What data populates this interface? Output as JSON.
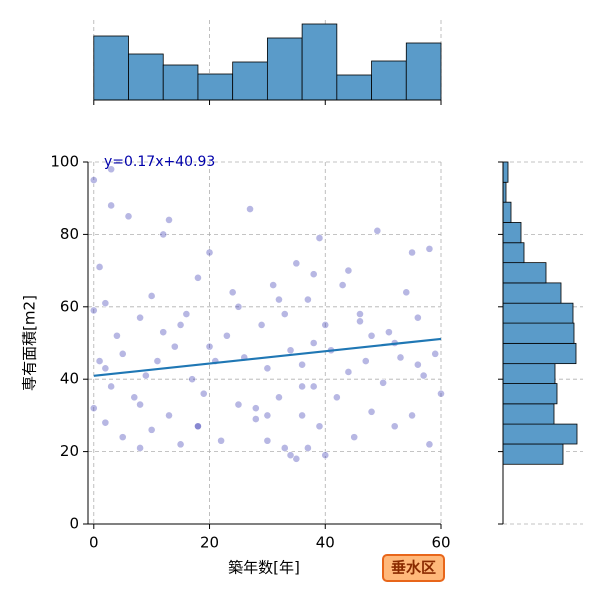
{
  "chart_data": [
    {
      "type": "scatter",
      "xlabel": "築年数[年]",
      "ylabel": "専有面積[m2]",
      "xlim": [
        -1,
        60
      ],
      "ylim": [
        0,
        100
      ],
      "xticks": [
        0,
        20,
        40,
        60
      ],
      "yticks": [
        0,
        20,
        40,
        60,
        80,
        100
      ],
      "grid": true,
      "color": "#3030b0",
      "x": [
        0,
        0,
        0,
        1,
        1,
        2,
        2,
        3,
        3,
        4,
        5,
        5,
        6,
        7,
        8,
        8,
        9,
        10,
        10,
        11,
        12,
        13,
        13,
        14,
        15,
        16,
        17,
        18,
        18,
        19,
        20,
        21,
        22,
        23,
        24,
        25,
        26,
        27,
        28,
        29,
        30,
        30,
        31,
        32,
        33,
        33,
        34,
        35,
        35,
        36,
        36,
        37,
        37,
        38,
        38,
        39,
        39,
        40,
        40,
        41,
        42,
        43,
        44,
        45,
        46,
        47,
        48,
        49,
        50,
        51,
        52,
        53,
        54,
        55,
        56,
        57,
        58,
        59,
        60,
        3,
        15,
        25,
        34,
        44,
        52,
        58,
        8,
        20,
        30,
        38,
        48,
        56,
        12,
        28,
        36,
        46,
        55,
        2,
        18,
        32
      ],
      "y": [
        59,
        32,
        95,
        71,
        45,
        28,
        61,
        98,
        38,
        52,
        24,
        47,
        85,
        35,
        57,
        21,
        41,
        26,
        63,
        45,
        53,
        30,
        84,
        49,
        22,
        58,
        40,
        68,
        27,
        36,
        75,
        45,
        23,
        52,
        64,
        33,
        46,
        87,
        29,
        55,
        23,
        43,
        66,
        35,
        21,
        58,
        48,
        18,
        72,
        44,
        30,
        62,
        21,
        50,
        38,
        27,
        79,
        55,
        19,
        48,
        35,
        66,
        42,
        24,
        58,
        45,
        31,
        81,
        39,
        53,
        27,
        46,
        64,
        30,
        57,
        41,
        76,
        47,
        36,
        88,
        55,
        60,
        19,
        70,
        50,
        22,
        33,
        49,
        30,
        69,
        52,
        44,
        80,
        32,
        38,
        56,
        75,
        43,
        27,
        62
      ],
      "regression": {
        "slope": 0.17,
        "intercept": 40.93,
        "color": "#1f77b4"
      },
      "annotation": "y=0.17x+40.93",
      "badge": "垂水区"
    },
    {
      "type": "histogram",
      "orientation": "vertical",
      "color": "#5a9bc9",
      "bins": [
        0,
        6,
        12,
        18,
        24,
        30,
        36,
        42,
        48,
        54,
        60
      ],
      "counts": [
        64,
        46,
        35,
        26,
        38,
        62,
        76,
        25,
        39,
        57
      ],
      "countlim": [
        0,
        80
      ]
    },
    {
      "type": "histogram",
      "orientation": "horizontal",
      "color": "#5a9bc9",
      "bins": [
        16.5,
        22.1,
        27.6,
        33.2,
        38.8,
        44.3,
        49.9,
        55.5,
        61.0,
        66.6,
        72.2,
        77.7,
        83.3,
        88.9,
        94.4,
        100
      ],
      "counts": [
        60,
        74,
        51,
        54,
        52,
        73,
        71,
        70,
        58,
        43,
        21,
        18,
        8,
        3,
        5
      ],
      "countlim": [
        0,
        80
      ]
    }
  ]
}
